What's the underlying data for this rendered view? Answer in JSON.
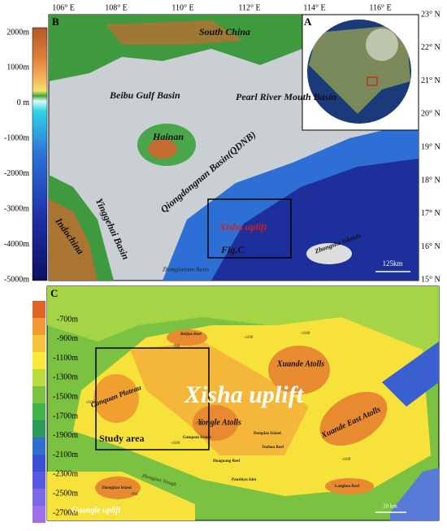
{
  "panel_b": {
    "label": "B",
    "longitudes": [
      "106° E",
      "108° E",
      "110° E",
      "112° E",
      "114° E",
      "116° E"
    ],
    "latitudes": [
      "23° N",
      "22° N",
      "21° N",
      "20° N",
      "19° N",
      "18° N",
      "17° N",
      "16° N",
      "15° N"
    ],
    "colorbar": [
      "2000m",
      "1000m",
      "0 m",
      "-1000m",
      "-2000m",
      "-3000m",
      "-4000m",
      "-5000m"
    ],
    "places": {
      "south_china": "South China",
      "beibu": "Beibu Gulf Basin",
      "pearl": "Pearl River Mouth Basin",
      "hainan": "Hainan",
      "yinggehai": "Yinggehai Basin",
      "indochina": "Indochina",
      "qdnb": "Qiongdongnan Basin(QDNB)",
      "xisha": "Xisha uplift",
      "figc": "Fig.C",
      "zhongjiannan": "Zhongjiannan Basin",
      "zhongsha": "Zhongsha Islands"
    },
    "scale": "125km",
    "inset_label": "A"
  },
  "panel_c": {
    "label": "C",
    "colorbar": [
      "-700m",
      "-900m",
      "-1100m",
      "-1300m",
      "-1500m",
      "-1700m",
      "-1900m",
      "-2100m",
      "-2300m",
      "-2500m",
      "-2700m"
    ],
    "places": {
      "xisha": "Xisha uplift",
      "xuande": "Xuande Atolls",
      "canquan": "Canquan Plateau",
      "yongle": "Yongle Atolls",
      "xuande_east": "Xuande East Atolls",
      "study": "Study area",
      "beijiao": "Beijiao Reef",
      "ganquan": "Ganquan Island",
      "dongdao": "Dongdao Island",
      "yuzhou": "Yuzhou Reef",
      "huaguang": "Huaguang Reef",
      "panshiyu": "Panshiyu Islet",
      "langhua": "Langhua Reef",
      "trough": "Zhongjian Trough",
      "guangle": "Guangle uplift",
      "zhongjian": "Zhongjian Island"
    },
    "contours": [
      "-1100",
      "-1100",
      "-1100",
      "-1100",
      "-700",
      "-700",
      "-1100",
      "-700"
    ],
    "scale": "20 km"
  }
}
